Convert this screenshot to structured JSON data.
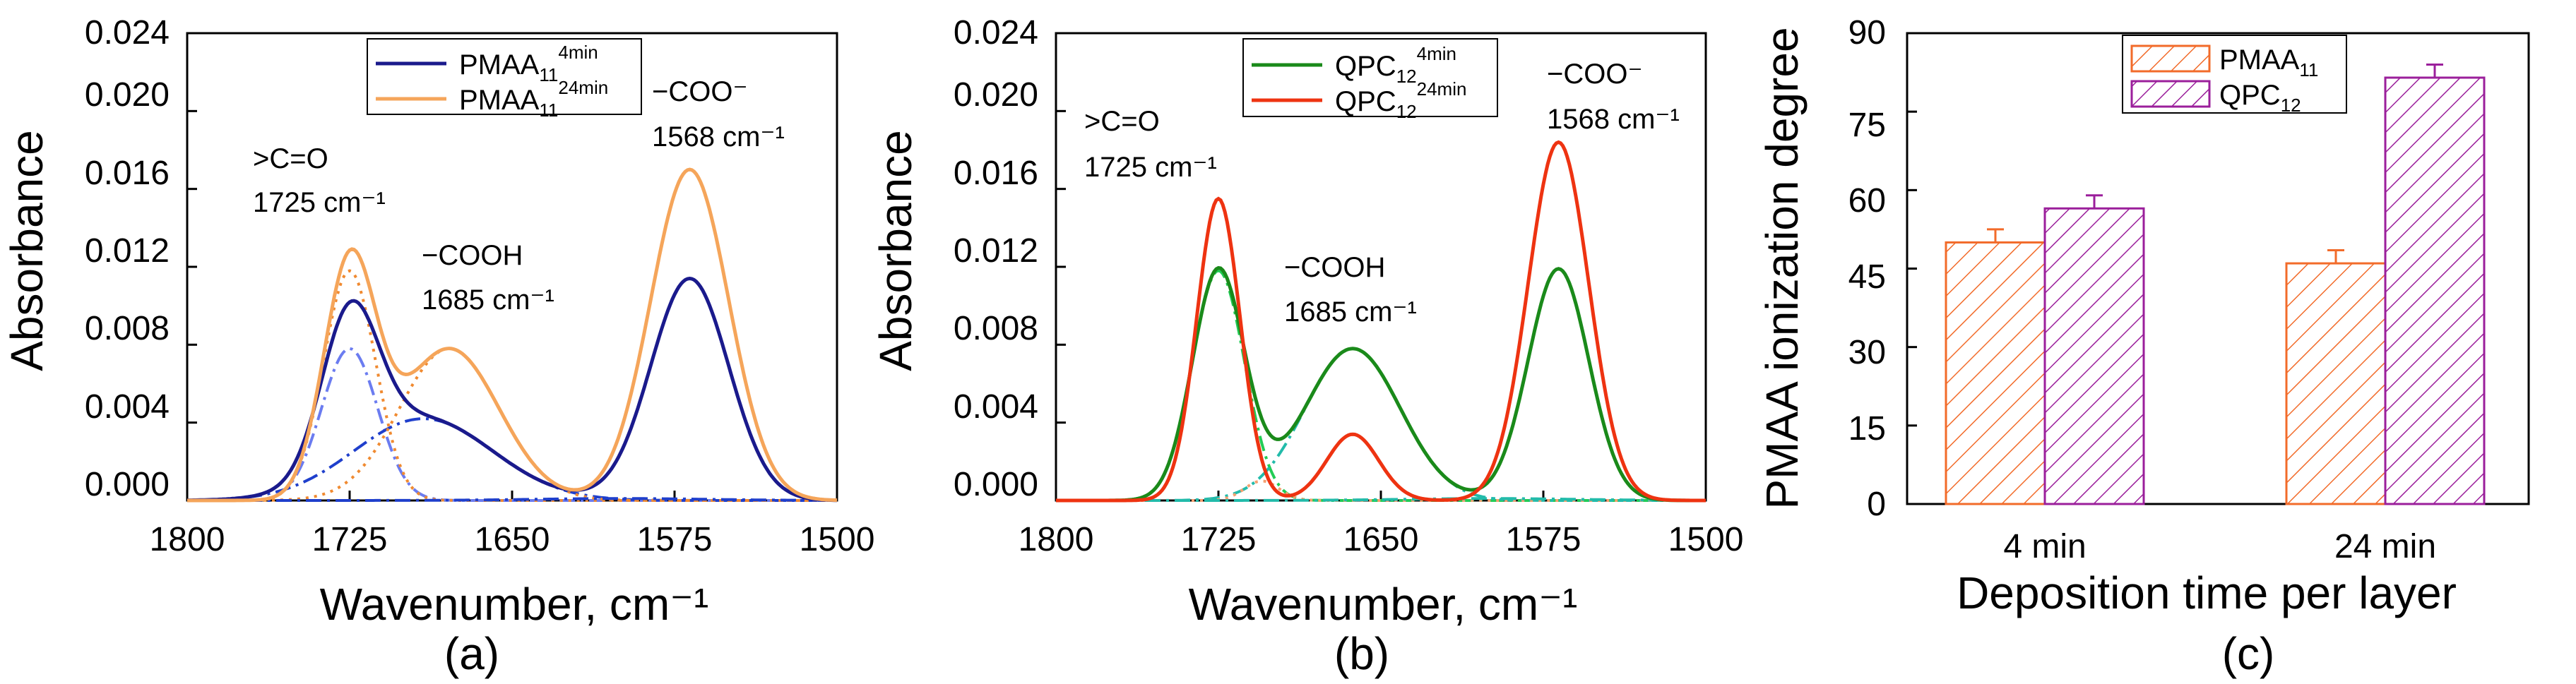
{
  "chart_data": [
    {
      "type": "line",
      "panel_label": "(a)",
      "xlabel": "Wavenumber, cm⁻¹",
      "ylabel": "Absorbance",
      "xlim": [
        1800,
        1500
      ],
      "ylim": [
        0,
        0.024
      ],
      "xticks": [
        "1800",
        "1725",
        "1650",
        "1575",
        "1500"
      ],
      "yticks": [
        "0.000",
        "0.004",
        "0.008",
        "0.012",
        "0.016",
        "0.020",
        "0.024"
      ],
      "legend": [
        {
          "name": "PMAA",
          "sub": "11",
          "sup": "4min",
          "color": "#1a1a8c"
        },
        {
          "name": "PMAA",
          "sub": "11",
          "sup": "24min",
          "color": "#f5a55a"
        }
      ],
      "annotations": [
        {
          "line1": ">C=O",
          "line2": "1725 cm⁻¹"
        },
        {
          "line1": "−COOH",
          "line2": "1685 cm⁻¹"
        },
        {
          "line1": "−COO⁻",
          "line2": "1568 cm⁻¹"
        }
      ],
      "series": [
        {
          "name": "PMAA11 4min",
          "color": "#1a1a8c",
          "peaks": [
            [
              1725,
              0.0078,
              13
            ],
            [
              1691,
              0.0042,
              32
            ],
            [
              1568,
              0.0114,
              18
            ]
          ]
        },
        {
          "name": "PMAA11 24min",
          "color": "#f5a55a",
          "peaks": [
            [
              1725,
              0.0118,
              12
            ],
            [
              1679,
              0.0078,
              23
            ],
            [
              1568,
              0.017,
              18
            ]
          ]
        }
      ],
      "components": [
        {
          "color": "#6b7cf0",
          "dash": "dashdot",
          "peaks": [
            [
              1725,
              0.0078,
              13
            ]
          ]
        },
        {
          "color": "#1f3fcc",
          "dash": "dashdot",
          "peaks": [
            [
              1691,
              0.0042,
              32
            ]
          ]
        },
        {
          "color": "#f08a30",
          "dash": "dot",
          "peaks": [
            [
              1725,
              0.0118,
              12
            ]
          ]
        },
        {
          "color": "#f08a30",
          "dash": "dot",
          "peaks": [
            [
              1679,
              0.0078,
              23
            ]
          ]
        },
        {
          "color": "#1f3fcc",
          "dash": "dashdot",
          "peaks": [
            [
              1600,
              0.0001,
              40
            ]
          ]
        }
      ]
    },
    {
      "type": "line",
      "panel_label": "(b)",
      "xlabel": "Wavenumber, cm⁻¹",
      "ylabel": "Absorbance",
      "xlim": [
        1800,
        1500
      ],
      "ylim": [
        0,
        0.024
      ],
      "xticks": [
        "1800",
        "1725",
        "1650",
        "1575",
        "1500"
      ],
      "yticks": [
        "0.000",
        "0.004",
        "0.008",
        "0.012",
        "0.016",
        "0.020",
        "0.024"
      ],
      "legend": [
        {
          "name": "QPC",
          "sub": "12",
          "sup": "4min",
          "color": "#1a8a1a"
        },
        {
          "name": "QPC",
          "sub": "12",
          "sup": "24min",
          "color": "#ee3311"
        }
      ],
      "annotations": [
        {
          "line1": ">C=O",
          "line2": "1725 cm⁻¹"
        },
        {
          "line1": "−COOH",
          "line2": "1685 cm⁻¹"
        },
        {
          "line1": "−COO⁻",
          "line2": "1568 cm⁻¹"
        }
      ],
      "series": [
        {
          "name": "QPC12 4min",
          "color": "#1a8a1a",
          "peaks": [
            [
              1725,
              0.0118,
              12
            ],
            [
              1663,
              0.0078,
              22
            ],
            [
              1568,
              0.0119,
              14
            ]
          ]
        },
        {
          "name": "QPC12 24min",
          "color": "#ee3311",
          "peaks": [
            [
              1725,
              0.0155,
              10
            ],
            [
              1663,
              0.0034,
              12
            ],
            [
              1568,
              0.0184,
              14
            ]
          ]
        }
      ],
      "components": [
        {
          "color": "#22cc55",
          "dash": "dashdot",
          "peaks": [
            [
              1725,
              0.0118,
              12
            ]
          ]
        },
        {
          "color": "#22bbaa",
          "dash": "dashdot",
          "peaks": [
            [
              1663,
              0.0078,
              22
            ]
          ]
        },
        {
          "color": "#f5a070",
          "dash": "dot",
          "peaks": [
            [
              1705,
              0.001,
              8
            ]
          ]
        },
        {
          "color": "#22bbaa",
          "dash": "dashdot",
          "peaks": [
            [
              1600,
              0.0001,
              40
            ]
          ]
        }
      ]
    },
    {
      "type": "bar",
      "panel_label": "(c)",
      "xlabel": "Deposition time per layer",
      "ylabel": "PMAA ionization degree",
      "ylim": [
        0,
        90
      ],
      "yticks": [
        "0",
        "15",
        "30",
        "45",
        "60",
        "75",
        "90"
      ],
      "categories": [
        "4 min",
        "24 min"
      ],
      "series": [
        {
          "name": "PMAA",
          "sub": "11",
          "color": "#f26b2a",
          "values": [
            50,
            46
          ],
          "errors": [
            2.5,
            2.5
          ]
        },
        {
          "name": "QPC",
          "sub": "12",
          "color": "#9b1f9b",
          "values": [
            56.5,
            81.5
          ],
          "errors": [
            2.5,
            2.5
          ]
        }
      ]
    }
  ]
}
